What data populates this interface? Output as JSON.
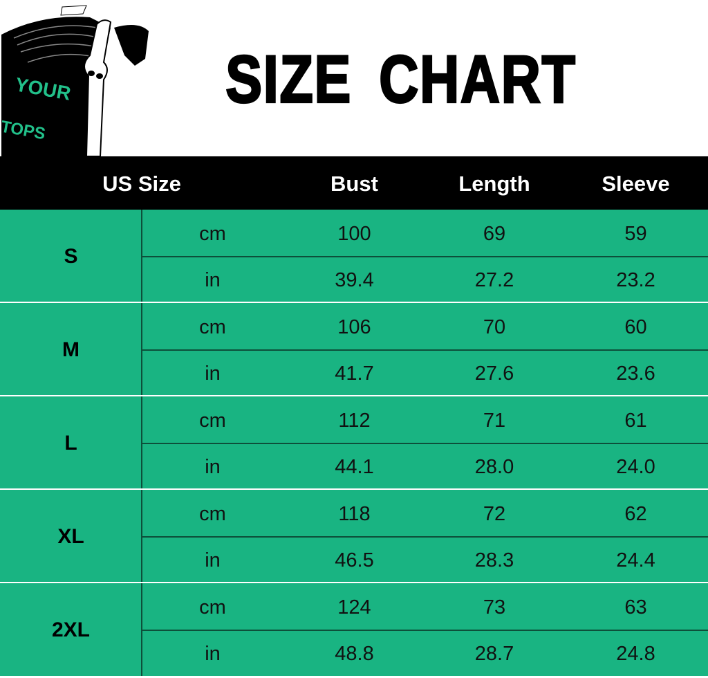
{
  "title": "SIZE CHART",
  "logo_text": "YOUR TOPS",
  "colors": {
    "table_green": "#19b482",
    "header_black": "#000000",
    "logo_green": "#22c08a"
  },
  "header": {
    "size": "US Size",
    "bust": "Bust",
    "length": "Length",
    "sleeve": "Sleeve"
  },
  "sizes": [
    {
      "size": "S",
      "rows": [
        {
          "unit": "cm",
          "bust": "100",
          "length": "69",
          "sleeve": "59"
        },
        {
          "unit": "in",
          "bust": "39.4",
          "length": "27.2",
          "sleeve": "23.2"
        }
      ]
    },
    {
      "size": "M",
      "rows": [
        {
          "unit": "cm",
          "bust": "106",
          "length": "70",
          "sleeve": "60"
        },
        {
          "unit": "in",
          "bust": "41.7",
          "length": "27.6",
          "sleeve": "23.6"
        }
      ]
    },
    {
      "size": "L",
      "rows": [
        {
          "unit": "cm",
          "bust": "112",
          "length": "71",
          "sleeve": "61"
        },
        {
          "unit": "in",
          "bust": "44.1",
          "length": "28.0",
          "sleeve": "24.0"
        }
      ]
    },
    {
      "size": "XL",
      "rows": [
        {
          "unit": "cm",
          "bust": "118",
          "length": "72",
          "sleeve": "62"
        },
        {
          "unit": "in",
          "bust": "46.5",
          "length": "28.3",
          "sleeve": "24.4"
        }
      ]
    },
    {
      "size": "2XL",
      "rows": [
        {
          "unit": "cm",
          "bust": "124",
          "length": "73",
          "sleeve": "63"
        },
        {
          "unit": "in",
          "bust": "48.8",
          "length": "28.7",
          "sleeve": "24.8"
        }
      ]
    }
  ]
}
